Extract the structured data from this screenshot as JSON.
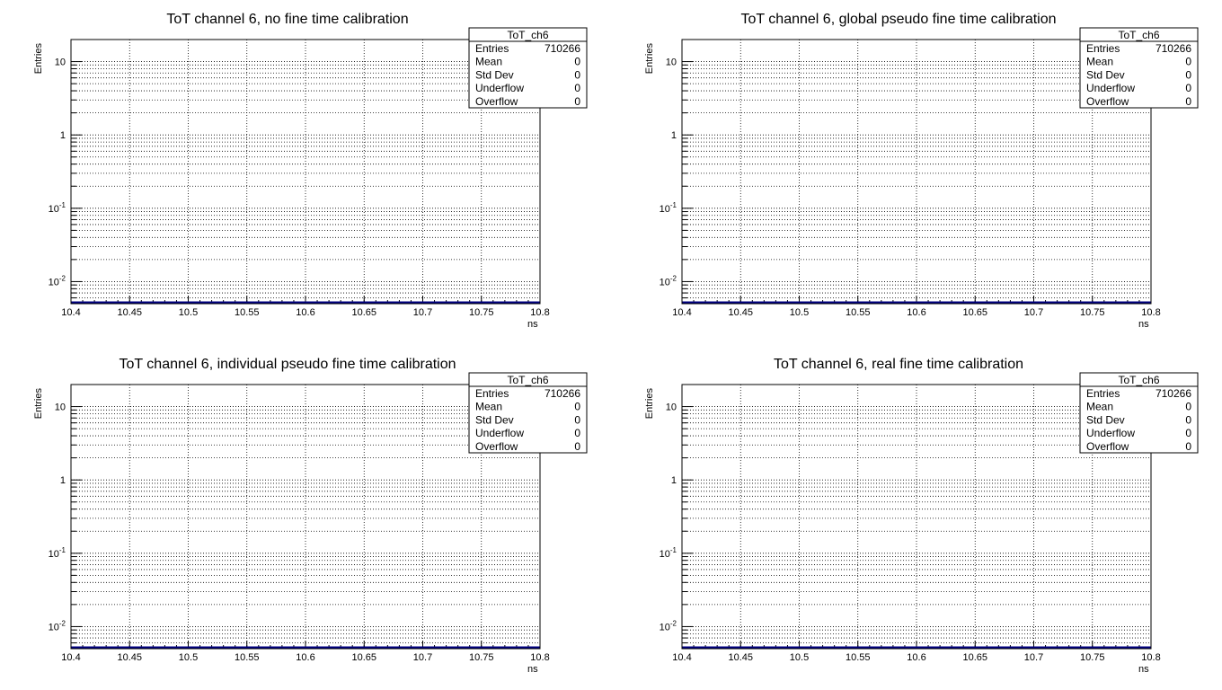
{
  "chart_data": [
    {
      "type": "histogram",
      "title": "ToT channel 6, no fine time calibration",
      "xlabel": "ns",
      "ylabel": "Entries",
      "xlim": [
        10.4,
        10.8
      ],
      "ylim": [
        0.005,
        20
      ],
      "log_y": true,
      "grid": true,
      "x_ticks": [
        "10.4",
        "10.45",
        "10.5",
        "10.55",
        "10.6",
        "10.65",
        "10.7",
        "10.75",
        "10.8"
      ],
      "y_ticks": [
        {
          "value": 0.01,
          "base": "10",
          "exp": "-2"
        },
        {
          "value": 0.1,
          "base": "10",
          "exp": "-1"
        },
        {
          "value": 1,
          "base": "1",
          "exp": ""
        },
        {
          "value": 10,
          "base": "10",
          "exp": ""
        }
      ],
      "stats": {
        "name": "ToT_ch6",
        "rows": [
          {
            "label": "Entries",
            "value": "710266"
          },
          {
            "label": "Mean",
            "value": "0"
          },
          {
            "label": "Std Dev",
            "value": "0"
          },
          {
            "label": "Underflow",
            "value": "0"
          },
          {
            "label": "Overflow",
            "value": "0"
          }
        ]
      },
      "bins": []
    },
    {
      "type": "histogram",
      "title": "ToT channel 6, global pseudo fine time calibration",
      "xlabel": "ns",
      "ylabel": "Entries",
      "xlim": [
        10.4,
        10.8
      ],
      "ylim": [
        0.005,
        20
      ],
      "log_y": true,
      "grid": true,
      "x_ticks": [
        "10.4",
        "10.45",
        "10.5",
        "10.55",
        "10.6",
        "10.65",
        "10.7",
        "10.75",
        "10.8"
      ],
      "y_ticks": [
        {
          "value": 0.01,
          "base": "10",
          "exp": "-2"
        },
        {
          "value": 0.1,
          "base": "10",
          "exp": "-1"
        },
        {
          "value": 1,
          "base": "1",
          "exp": ""
        },
        {
          "value": 10,
          "base": "10",
          "exp": ""
        }
      ],
      "stats": {
        "name": "ToT_ch6",
        "rows": [
          {
            "label": "Entries",
            "value": "710266"
          },
          {
            "label": "Mean",
            "value": "0"
          },
          {
            "label": "Std Dev",
            "value": "0"
          },
          {
            "label": "Underflow",
            "value": "0"
          },
          {
            "label": "Overflow",
            "value": "0"
          }
        ]
      },
      "bins": []
    },
    {
      "type": "histogram",
      "title": "ToT channel 6, individual pseudo fine time calibration",
      "xlabel": "ns",
      "ylabel": "Entries",
      "xlim": [
        10.4,
        10.8
      ],
      "ylim": [
        0.005,
        20
      ],
      "log_y": true,
      "grid": true,
      "x_ticks": [
        "10.4",
        "10.45",
        "10.5",
        "10.55",
        "10.6",
        "10.65",
        "10.7",
        "10.75",
        "10.8"
      ],
      "y_ticks": [
        {
          "value": 0.01,
          "base": "10",
          "exp": "-2"
        },
        {
          "value": 0.1,
          "base": "10",
          "exp": "-1"
        },
        {
          "value": 1,
          "base": "1",
          "exp": ""
        },
        {
          "value": 10,
          "base": "10",
          "exp": ""
        }
      ],
      "stats": {
        "name": "ToT_ch6",
        "rows": [
          {
            "label": "Entries",
            "value": "710266"
          },
          {
            "label": "Mean",
            "value": "0"
          },
          {
            "label": "Std Dev",
            "value": "0"
          },
          {
            "label": "Underflow",
            "value": "0"
          },
          {
            "label": "Overflow",
            "value": "0"
          }
        ]
      },
      "bins": []
    },
    {
      "type": "histogram",
      "title": "ToT channel 6, real fine time calibration",
      "xlabel": "ns",
      "ylabel": "Entries",
      "xlim": [
        10.4,
        10.8
      ],
      "ylim": [
        0.005,
        20
      ],
      "log_y": true,
      "grid": true,
      "x_ticks": [
        "10.4",
        "10.45",
        "10.5",
        "10.55",
        "10.6",
        "10.65",
        "10.7",
        "10.75",
        "10.8"
      ],
      "y_ticks": [
        {
          "value": 0.01,
          "base": "10",
          "exp": "-2"
        },
        {
          "value": 0.1,
          "base": "10",
          "exp": "-1"
        },
        {
          "value": 1,
          "base": "1",
          "exp": ""
        },
        {
          "value": 10,
          "base": "10",
          "exp": ""
        }
      ],
      "stats": {
        "name": "ToT_ch6",
        "rows": [
          {
            "label": "Entries",
            "value": "710266"
          },
          {
            "label": "Mean",
            "value": "0"
          },
          {
            "label": "Std Dev",
            "value": "0"
          },
          {
            "label": "Underflow",
            "value": "0"
          },
          {
            "label": "Overflow",
            "value": "0"
          }
        ]
      },
      "bins": []
    }
  ],
  "colors": {
    "histogram_line": "#000080",
    "grid": "#000000",
    "frame": "#000000"
  }
}
